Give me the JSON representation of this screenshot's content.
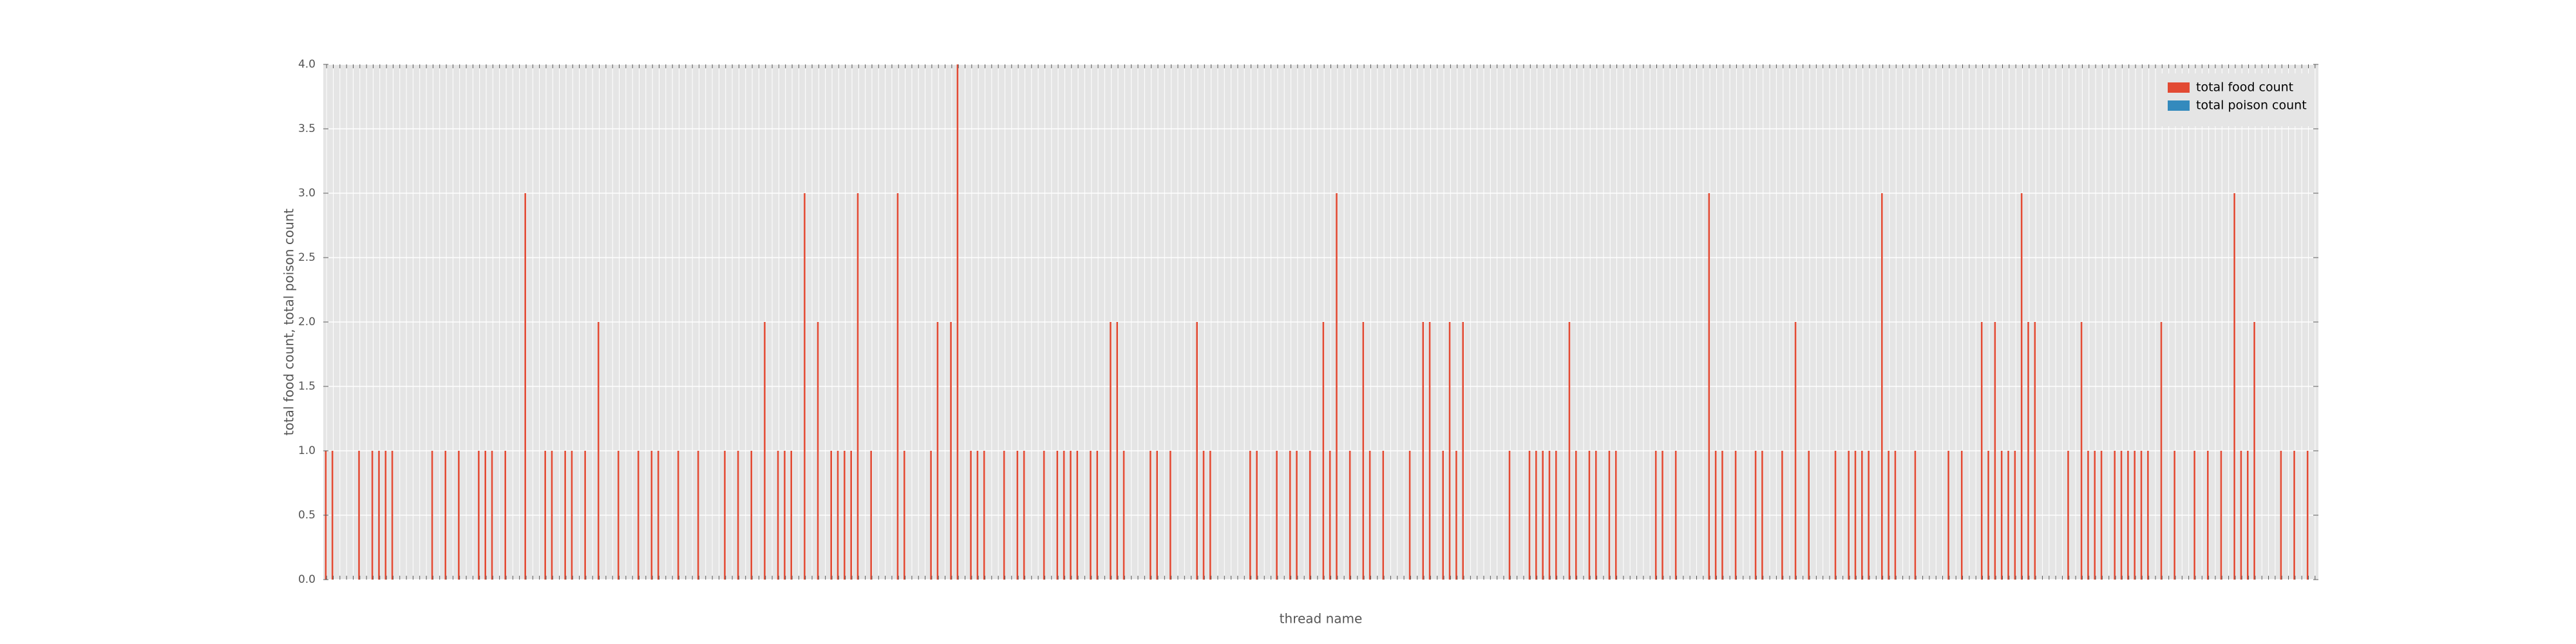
{
  "chart_data": {
    "type": "bar",
    "xlabel": "thread name",
    "ylabel": "total food count, total poison count",
    "categories": [
      null,
      null,
      null,
      null,
      null,
      null,
      null,
      null,
      null,
      null,
      null,
      null,
      null,
      null,
      null,
      null,
      null,
      null,
      null,
      null,
      null,
      null,
      null,
      null,
      null,
      null,
      null,
      null,
      null,
      null,
      null,
      null,
      null,
      null,
      null,
      null,
      null,
      null,
      null,
      null,
      null,
      null,
      null,
      null,
      null,
      null,
      null,
      null,
      null,
      null,
      null,
      null,
      null,
      null,
      null,
      null,
      null,
      null,
      null,
      null,
      null,
      null,
      null,
      null,
      null,
      null,
      null,
      null,
      null,
      null,
      null,
      null,
      null,
      null,
      null,
      null,
      null,
      null,
      null,
      null,
      null,
      null,
      null,
      null,
      null,
      null,
      null,
      null,
      null,
      null,
      null,
      null,
      null,
      null,
      null,
      null,
      null,
      null,
      null,
      null,
      null,
      null,
      null,
      null,
      null,
      null,
      null,
      null,
      null,
      null,
      null,
      null,
      null,
      null,
      null,
      null,
      null,
      null,
      null,
      null,
      null,
      null,
      null,
      null,
      null,
      null,
      null,
      null,
      null,
      null,
      null,
      null,
      null,
      null,
      null,
      null,
      null,
      null,
      null,
      null,
      null,
      null,
      null,
      null,
      null,
      null,
      null,
      null,
      null,
      null,
      null,
      null,
      null,
      null,
      null,
      null,
      null,
      null,
      null,
      null,
      null,
      null,
      null,
      null,
      null,
      null,
      null,
      null,
      null,
      null,
      null,
      null,
      null,
      null,
      null,
      null,
      null,
      null,
      null,
      null,
      null,
      null,
      null,
      null,
      null,
      null,
      null,
      null,
      null,
      null,
      null,
      null,
      null,
      null,
      null,
      null,
      null,
      null,
      null,
      null,
      null,
      null,
      null,
      null,
      null,
      null,
      null,
      null,
      null,
      null,
      null,
      null,
      null,
      null,
      null,
      null,
      null,
      null,
      null,
      null,
      null,
      null,
      null,
      null,
      null,
      null,
      null,
      null,
      null,
      null,
      null,
      null,
      null,
      null,
      null,
      null,
      null,
      null,
      null,
      null,
      null,
      null,
      null,
      null,
      null,
      null,
      null,
      null,
      null,
      null,
      null,
      null,
      null,
      null,
      null,
      null,
      null,
      null,
      null,
      null,
      null,
      null,
      null,
      null,
      null,
      null,
      null,
      null,
      null,
      null,
      null,
      null,
      null,
      null,
      null,
      null,
      null,
      null,
      null,
      null,
      null,
      null,
      null,
      null,
      null,
      null,
      null,
      null,
      null,
      null,
      null,
      null,
      null,
      null,
      null,
      null,
      null,
      null,
      null,
      null
    ],
    "series": [
      {
        "name": "total food count",
        "color": "#E24A33",
        "values": [
          1,
          1,
          0,
          0,
          0,
          1,
          0,
          1,
          1,
          1,
          1,
          0,
          0,
          0,
          0,
          0,
          1,
          0,
          1,
          0,
          1,
          0,
          0,
          1,
          1,
          1,
          0,
          1,
          0,
          0,
          3,
          0,
          0,
          1,
          1,
          0,
          1,
          1,
          0,
          1,
          0,
          2,
          0,
          0,
          1,
          0,
          0,
          1,
          0,
          1,
          1,
          0,
          0,
          1,
          0,
          0,
          1,
          0,
          0,
          0,
          1,
          0,
          1,
          0,
          1,
          0,
          2,
          0,
          1,
          1,
          1,
          0,
          3,
          0,
          2,
          0,
          1,
          1,
          1,
          1,
          3,
          0,
          1,
          0,
          0,
          0,
          3,
          1,
          0,
          0,
          0,
          1,
          2,
          0,
          2,
          4,
          0,
          1,
          1,
          1,
          0,
          0,
          1,
          0,
          1,
          1,
          0,
          0,
          1,
          0,
          1,
          1,
          1,
          1,
          0,
          1,
          1,
          0,
          2,
          2,
          1,
          0,
          0,
          0,
          1,
          1,
          0,
          1,
          0,
          0,
          0,
          2,
          1,
          1,
          0,
          0,
          0,
          0,
          0,
          1,
          1,
          0,
          0,
          1,
          0,
          1,
          1,
          0,
          1,
          0,
          2,
          1,
          3,
          0,
          1,
          0,
          2,
          1,
          0,
          1,
          0,
          0,
          0,
          1,
          0,
          2,
          2,
          0,
          1,
          2,
          1,
          2,
          0,
          0,
          0,
          0,
          0,
          0,
          1,
          0,
          0,
          1,
          1,
          1,
          1,
          1,
          0,
          2,
          1,
          0,
          1,
          1,
          0,
          1,
          1,
          0,
          0,
          0,
          0,
          0,
          1,
          1,
          0,
          1,
          0,
          0,
          0,
          0,
          3,
          1,
          1,
          0,
          1,
          0,
          0,
          1,
          1,
          0,
          0,
          1,
          0,
          2,
          0,
          1,
          0,
          0,
          0,
          1,
          0,
          1,
          1,
          1,
          1,
          0,
          3,
          1,
          1,
          0,
          0,
          1,
          0,
          0,
          0,
          0,
          1,
          0,
          1,
          0,
          0,
          2,
          1,
          2,
          1,
          1,
          1,
          3,
          2,
          2,
          0,
          0,
          0,
          0,
          1,
          0,
          2,
          1,
          1,
          1,
          0,
          1,
          1,
          1,
          1,
          1,
          1,
          0,
          2,
          0,
          1,
          0,
          0,
          1,
          0,
          1,
          0,
          1,
          0,
          3,
          1,
          1,
          2,
          0,
          0,
          0,
          1,
          0,
          1,
          0,
          1,
          0
        ]
      },
      {
        "name": "total poison count",
        "color": "#348ABD",
        "values": [
          0,
          0,
          0,
          0,
          0,
          0,
          0,
          0,
          0,
          0,
          0,
          0,
          0,
          0,
          0,
          0,
          0,
          0,
          0,
          0,
          0,
          0,
          0,
          0,
          0,
          0,
          0,
          0,
          0,
          0,
          0,
          0,
          0,
          0,
          0,
          0,
          0,
          0,
          0,
          0,
          0,
          0,
          0,
          0,
          0,
          0,
          0,
          0,
          0,
          0,
          0,
          0,
          0,
          0,
          0,
          0,
          0,
          0,
          0,
          0,
          0,
          0,
          0,
          0,
          0,
          0,
          0,
          0,
          0,
          0,
          0,
          0,
          0,
          0,
          0,
          0,
          0,
          0,
          0,
          0,
          0,
          0,
          0,
          0,
          0,
          0,
          0,
          0,
          0,
          0,
          0,
          0,
          0,
          0,
          0,
          0,
          0,
          0,
          0,
          0,
          0,
          0,
          0,
          0,
          0,
          0,
          0,
          0,
          0,
          0,
          0,
          0,
          0,
          0,
          0,
          0,
          0,
          0,
          0,
          0,
          0,
          0,
          0,
          0,
          0,
          0,
          0,
          0,
          0,
          0,
          0,
          0,
          0,
          0,
          0,
          0,
          0,
          0,
          0,
          0,
          0,
          0,
          0,
          0,
          0,
          0,
          0,
          0,
          0,
          0,
          0,
          0,
          0,
          0,
          0,
          0,
          0,
          0,
          0,
          0,
          0,
          0,
          0,
          0,
          0,
          0,
          0,
          0,
          0,
          0,
          0,
          0,
          0,
          0,
          0,
          0,
          0,
          0,
          0,
          0,
          0,
          0,
          0,
          0,
          0,
          0,
          0,
          0,
          0,
          0,
          0,
          0,
          0,
          0,
          0,
          0,
          0,
          0,
          0,
          0,
          0,
          0,
          0,
          0,
          0,
          0,
          0,
          0,
          0,
          0,
          0,
          0,
          0,
          0,
          0,
          0,
          0,
          0,
          0,
          0,
          0,
          0,
          0,
          0,
          0,
          0,
          0,
          0,
          0,
          0,
          0,
          0,
          0,
          0,
          0,
          0,
          0,
          0,
          0,
          0,
          0,
          0,
          0,
          0,
          0,
          0,
          0,
          0,
          0,
          0,
          0,
          0,
          0,
          0,
          0,
          0,
          0,
          0,
          0,
          0,
          0,
          0,
          0,
          0,
          0,
          0,
          0,
          0,
          0,
          0,
          0,
          0,
          0,
          0,
          0,
          0,
          0,
          0,
          0,
          0,
          0,
          0,
          0,
          0,
          0,
          0,
          0,
          0,
          0,
          0,
          0,
          0,
          0,
          0,
          0,
          0,
          0,
          0,
          0,
          0
        ]
      }
    ],
    "ylim": [
      0,
      4
    ],
    "yticks": [
      {
        "value": 0,
        "label": "0.0"
      },
      {
        "value": 0.5,
        "label": "0.5"
      },
      {
        "value": 1,
        "label": "1.0"
      },
      {
        "value": 1.5,
        "label": "1.5"
      },
      {
        "value": 2,
        "label": "2.0"
      },
      {
        "value": 2.5,
        "label": "2.5"
      },
      {
        "value": 3,
        "label": "3.0"
      },
      {
        "value": 3.5,
        "label": "3.5"
      },
      {
        "value": 4,
        "label": "4.0"
      }
    ],
    "grid": true,
    "legend": "upper right"
  }
}
